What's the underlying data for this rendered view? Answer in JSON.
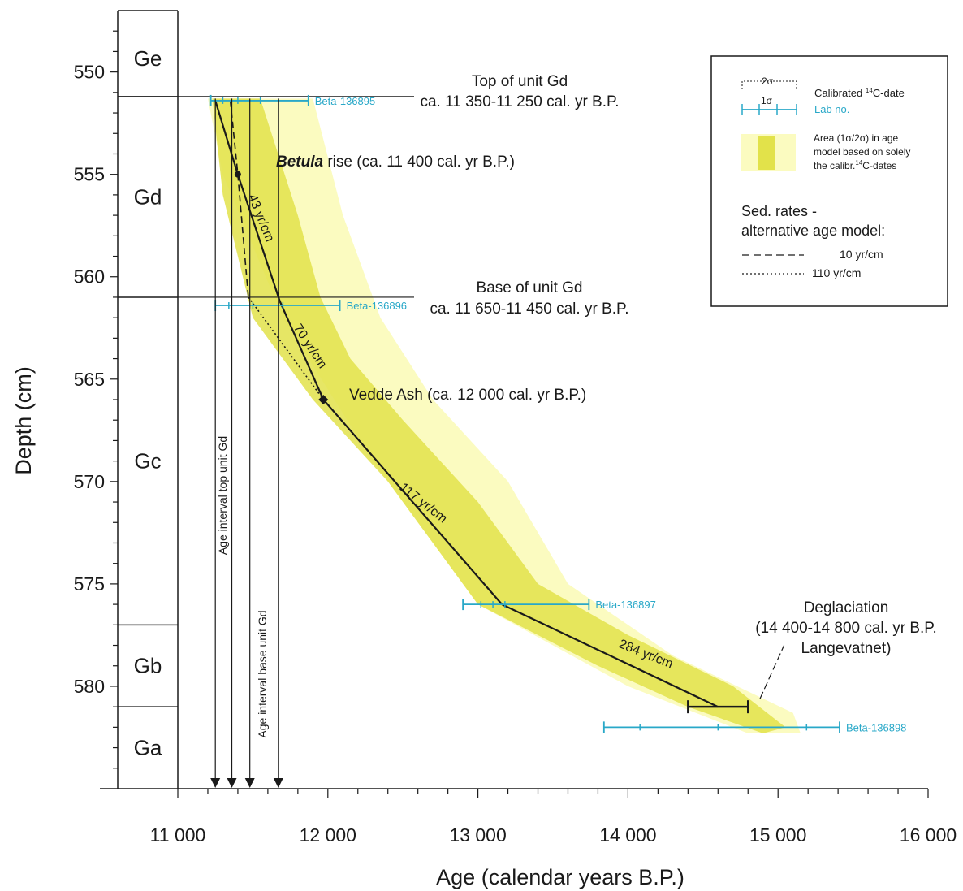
{
  "chart_data": {
    "type": "line",
    "xlabel": "Age (calendar years B.P.)",
    "ylabel": "Depth (cm)",
    "xlim": [
      11000,
      16000
    ],
    "ylim": [
      547,
      585
    ],
    "y_inverted": true,
    "grid": false,
    "x_ticks": [
      {
        "value": 11000,
        "label": "11 000"
      },
      {
        "value": 12000,
        "label": "12 000"
      },
      {
        "value": 13000,
        "label": "13 000"
      },
      {
        "value": 14000,
        "label": "14 000"
      },
      {
        "value": 15000,
        "label": "15 000"
      },
      {
        "value": 16000,
        "label": "16 000"
      }
    ],
    "y_ticks": [
      {
        "value": 550,
        "label": "550"
      },
      {
        "value": 555,
        "label": "555"
      },
      {
        "value": 560,
        "label": "560"
      },
      {
        "value": 565,
        "label": "565"
      },
      {
        "value": 570,
        "label": "570"
      },
      {
        "value": 575,
        "label": "575"
      },
      {
        "value": 580,
        "label": "580"
      }
    ],
    "units": [
      {
        "name": "Ge",
        "top": 547.5,
        "bottom": 551.2
      },
      {
        "name": "Gd",
        "top": 551.2,
        "bottom": 561.0
      },
      {
        "name": "Gc",
        "top": 561.0,
        "bottom": 577.0
      },
      {
        "name": "Gb",
        "top": 577.0,
        "bottom": 581.0
      },
      {
        "name": "Ga",
        "top": 581.0,
        "bottom": 585.0
      }
    ],
    "envelope_outer": [
      [
        11240,
        551.3
      ],
      [
        11900,
        551.3
      ],
      [
        12100,
        557
      ],
      [
        12350,
        562
      ],
      [
        12700,
        566
      ],
      [
        13200,
        570
      ],
      [
        13600,
        575
      ],
      [
        14300,
        578.5
      ],
      [
        15100,
        581.3
      ],
      [
        15150,
        582.3
      ],
      [
        14800,
        582.3
      ],
      [
        14000,
        580
      ],
      [
        13000,
        576
      ],
      [
        12300,
        569
      ],
      [
        11700,
        562
      ],
      [
        11300,
        555
      ],
      [
        11200,
        551.3
      ]
    ],
    "envelope_inner": [
      [
        11240,
        551.3
      ],
      [
        11550,
        551.3
      ],
      [
        11800,
        557
      ],
      [
        11950,
        561
      ],
      [
        12150,
        564
      ],
      [
        12500,
        567
      ],
      [
        13000,
        571
      ],
      [
        13400,
        575
      ],
      [
        14000,
        577.5
      ],
      [
        14700,
        580
      ],
      [
        15050,
        582
      ],
      [
        14900,
        582.3
      ],
      [
        14400,
        581
      ],
      [
        13800,
        579
      ],
      [
        13000,
        576
      ],
      [
        12400,
        570
      ],
      [
        11900,
        566
      ],
      [
        11500,
        562
      ],
      [
        11300,
        556
      ],
      [
        11230,
        551.3
      ]
    ],
    "series": [
      {
        "name": "43 yr/cm",
        "points": [
          [
            11250,
            551.4
          ],
          [
            11400,
            555
          ],
          [
            11680,
            561.2
          ]
        ]
      },
      {
        "name": "70 yr/cm",
        "points": [
          [
            11680,
            561.2
          ],
          [
            11970,
            566
          ]
        ]
      },
      {
        "name": "117 yr/cm",
        "points": [
          [
            11970,
            566
          ],
          [
            13160,
            576
          ]
        ]
      },
      {
        "name": "284 yr/cm",
        "points": [
          [
            13160,
            576
          ],
          [
            14600,
            581
          ]
        ]
      },
      {
        "name": "10 yr/cm",
        "style": "dashed",
        "points": [
          [
            11350,
            551.4
          ],
          [
            11400,
            555
          ],
          [
            11470,
            561
          ]
        ]
      },
      {
        "name": "110 yr/cm",
        "style": "dotted",
        "points": [
          [
            11470,
            561
          ],
          [
            11970,
            566
          ]
        ]
      }
    ],
    "line_labels": [
      {
        "text": "43 yr/cm",
        "x": 11530,
        "y": 557.2,
        "angle": 68
      },
      {
        "text": "70 yr/cm",
        "x": 11860,
        "y": 563.5,
        "angle": 57
      },
      {
        "text": "117 yr/cm",
        "x": 12620,
        "y": 571.2,
        "angle": 38
      },
      {
        "text": "284 yr/cm",
        "x": 14110,
        "y": 578.6,
        "angle": 22
      }
    ],
    "dates": [
      {
        "lab": "Beta-136895",
        "depth": 551.4,
        "s2": [
          11220,
          11870
        ],
        "s1": [
          11300,
          11550
        ],
        "mid": 11400
      },
      {
        "lab": "Beta-136896",
        "depth": 561.4,
        "s2": [
          11250,
          12080
        ],
        "s1": [
          11340,
          11700
        ],
        "mid": 11500
      },
      {
        "lab": "Beta-136897",
        "depth": 576.0,
        "s2": [
          12900,
          13740
        ],
        "s1": [
          13020,
          13180
        ],
        "mid": 13100
      },
      {
        "lab": "Beta-136898",
        "depth": 582.0,
        "s2": [
          13840,
          15410
        ],
        "s1": [
          14080,
          15190
        ],
        "mid": 14600
      }
    ],
    "deglaciation_bar": {
      "start": 14400,
      "end": 14800,
      "depth": 581
    },
    "arrows": [
      11250,
      11360,
      11480,
      11670
    ],
    "vedde_point": {
      "x": 11970,
      "y": 566
    },
    "betula_point": {
      "x": 11400,
      "y": 555
    },
    "annotations": {
      "top_gd_1": "Top of unit Gd",
      "top_gd_2": "ca. 11 350-11 250 cal. yr B.P.",
      "base_gd_1": "Base of unit Gd",
      "base_gd_2": "ca. 11 650-11 450 cal. yr B.P.",
      "betula_b": "Betula",
      "betula_rest": " rise (ca. 11 400 cal. yr B.P.)",
      "vedde": "Vedde Ash (ca. 12 000 cal. yr B.P.)",
      "deglac_1": "Deglaciation",
      "deglac_2": "(14 400-14 800 cal. yr B.P.",
      "deglac_3": "Langevatnet)",
      "age_top": "Age interval top unit Gd",
      "age_base": "Age interval base unit Gd"
    },
    "legend": {
      "placement": "top-right",
      "sigma2": "2σ",
      "sigma1": "1σ",
      "calibrated_pre": "Calibrated ",
      "calibrated_sup": "14",
      "calibrated_post": "C-date",
      "lab_no": "Lab no.",
      "area_1": "Area (1σ/2σ) in age",
      "area_2": "model based on solely",
      "area_3_pre": "the calibr.",
      "area_3_sup": "14",
      "area_3_post": "C-dates",
      "sed_1": "Sed. rates -",
      "sed_2": "alternative age model:",
      "dash_label": "10 yr/cm",
      "dot_label": "110 yr/cm"
    },
    "colors": {
      "line": "#1a1a1a",
      "envelope_outer": "#fbfbc0",
      "envelope_inner": "#e2e24a",
      "date_bar": "#29a8c8",
      "text": "#1a1a1a"
    }
  }
}
